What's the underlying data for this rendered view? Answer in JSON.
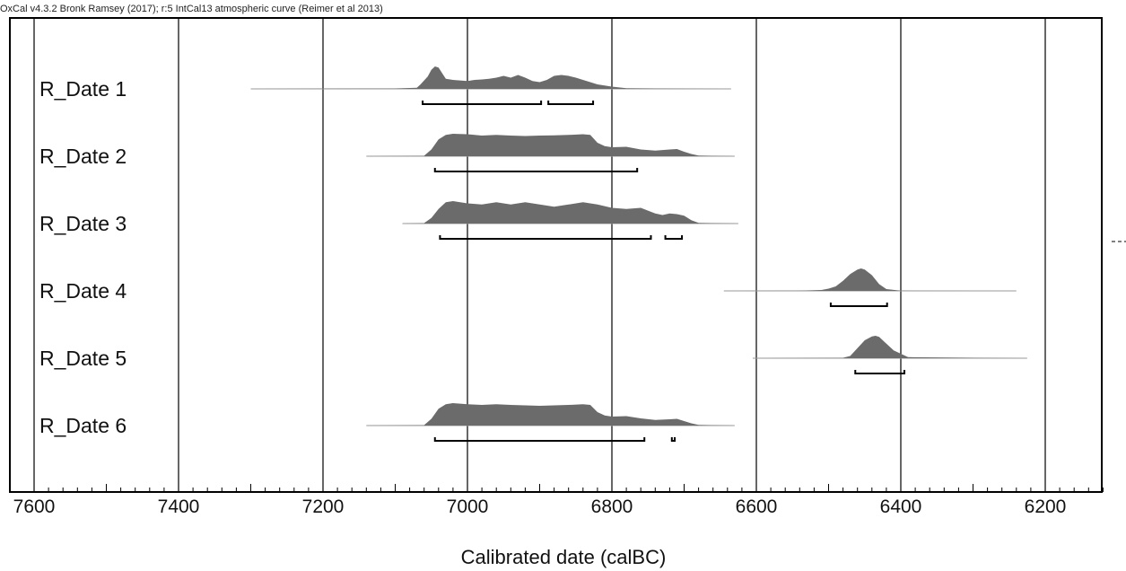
{
  "chart_data": {
    "type": "area",
    "title": "OxCal v4.3.2 Bronk Ramsey (2017); r:5 IntCal13 atmospheric curve (Reimer et al 2013)",
    "xlabel": "Calibrated date (calBC)",
    "ylabel": "",
    "xlim": [
      7600,
      6120
    ],
    "x_reversed": true,
    "xticks": [
      7600,
      7400,
      7200,
      7000,
      6800,
      6600,
      6400,
      6200
    ],
    "minor_tick_step": 20,
    "grid": "vertical lines at 200-year intervals",
    "colors": {
      "distribution": "#6b6b6b",
      "prior": "#9a9a9a",
      "frame": "#000000"
    },
    "series": [
      {
        "name": "R_Date 1",
        "prior_range": [
          7300,
          6635
        ],
        "x": [
          7300,
          7100,
          7070,
          7065,
          7055,
          7050,
          7045,
          7040,
          7035,
          7030,
          7020,
          7000,
          6990,
          6980,
          6970,
          6960,
          6950,
          6940,
          6930,
          6920,
          6910,
          6900,
          6890,
          6880,
          6870,
          6860,
          6850,
          6840,
          6830,
          6820,
          6800,
          6780,
          6700,
          6635
        ],
        "y": [
          0,
          0.02,
          0.05,
          0.2,
          0.55,
          0.85,
          1.0,
          0.95,
          0.7,
          0.45,
          0.4,
          0.35,
          0.4,
          0.42,
          0.45,
          0.5,
          0.58,
          0.5,
          0.62,
          0.5,
          0.35,
          0.3,
          0.4,
          0.58,
          0.62,
          0.58,
          0.5,
          0.4,
          0.3,
          0.2,
          0.1,
          0.03,
          0.01,
          0
        ],
        "ranges": [
          [
            7062,
            6898
          ],
          [
            6888,
            6826
          ]
        ]
      },
      {
        "name": "R_Date 2",
        "prior_range": [
          7140,
          6630
        ],
        "x": [
          7140,
          7060,
          7050,
          7040,
          7030,
          7020,
          7000,
          6980,
          6960,
          6940,
          6920,
          6900,
          6880,
          6860,
          6840,
          6830,
          6820,
          6810,
          6800,
          6780,
          6760,
          6740,
          6720,
          6710,
          6700,
          6690,
          6680,
          6630
        ],
        "y": [
          0,
          0.02,
          0.3,
          0.75,
          0.95,
          1.0,
          0.98,
          0.92,
          0.95,
          0.92,
          0.9,
          0.92,
          0.93,
          0.95,
          0.98,
          0.95,
          0.6,
          0.45,
          0.4,
          0.42,
          0.3,
          0.25,
          0.3,
          0.32,
          0.2,
          0.1,
          0.03,
          0
        ],
        "ranges": [
          [
            7045,
            6765
          ]
        ]
      },
      {
        "name": "R_Date 3",
        "prior_range": [
          7090,
          6625
        ],
        "x": [
          7090,
          7060,
          7050,
          7040,
          7030,
          7020,
          7000,
          6980,
          6960,
          6940,
          6920,
          6900,
          6880,
          6860,
          6840,
          6820,
          6800,
          6780,
          6760,
          6740,
          6730,
          6720,
          6710,
          6700,
          6690,
          6680,
          6625
        ],
        "y": [
          0,
          0.02,
          0.25,
          0.65,
          0.95,
          1.0,
          0.9,
          0.85,
          0.95,
          0.85,
          0.95,
          0.85,
          0.75,
          0.85,
          0.95,
          0.85,
          0.7,
          0.65,
          0.7,
          0.45,
          0.38,
          0.45,
          0.42,
          0.35,
          0.15,
          0.03,
          0
        ],
        "ranges": [
          [
            7038,
            6746
          ],
          [
            6726,
            6703
          ]
        ]
      },
      {
        "name": "R_Date 4",
        "prior_range": [
          6645,
          6240
        ],
        "x": [
          6645,
          6540,
          6510,
          6500,
          6490,
          6480,
          6470,
          6460,
          6455,
          6450,
          6440,
          6430,
          6420,
          6400,
          6240
        ],
        "y": [
          0,
          0.01,
          0.04,
          0.1,
          0.2,
          0.45,
          0.75,
          0.95,
          1.0,
          0.95,
          0.7,
          0.3,
          0.08,
          0.01,
          0
        ],
        "ranges": [
          [
            6497,
            6419
          ]
        ]
      },
      {
        "name": "R_Date 5",
        "prior_range": [
          6605,
          6225
        ],
        "x": [
          6605,
          6480,
          6470,
          6460,
          6450,
          6440,
          6435,
          6430,
          6420,
          6410,
          6400,
          6390,
          6225
        ],
        "y": [
          0,
          0.02,
          0.1,
          0.45,
          0.8,
          0.97,
          1.0,
          0.95,
          0.65,
          0.35,
          0.2,
          0.05,
          0
        ],
        "ranges": [
          [
            6463,
            6395
          ]
        ]
      },
      {
        "name": "R_Date 6",
        "prior_range": [
          7140,
          6630
        ],
        "x": [
          7140,
          7060,
          7050,
          7040,
          7030,
          7020,
          7000,
          6980,
          6960,
          6940,
          6920,
          6900,
          6880,
          6860,
          6840,
          6830,
          6820,
          6810,
          6800,
          6780,
          6760,
          6740,
          6720,
          6710,
          6700,
          6690,
          6680,
          6630
        ],
        "y": [
          0,
          0.02,
          0.3,
          0.75,
          0.95,
          1.0,
          0.95,
          0.92,
          0.95,
          0.92,
          0.9,
          0.88,
          0.9,
          0.92,
          0.95,
          0.92,
          0.6,
          0.45,
          0.4,
          0.42,
          0.32,
          0.25,
          0.28,
          0.3,
          0.2,
          0.1,
          0.03,
          0
        ],
        "ranges": [
          [
            7045,
            6755
          ],
          [
            6717,
            6713
          ]
        ]
      }
    ]
  }
}
